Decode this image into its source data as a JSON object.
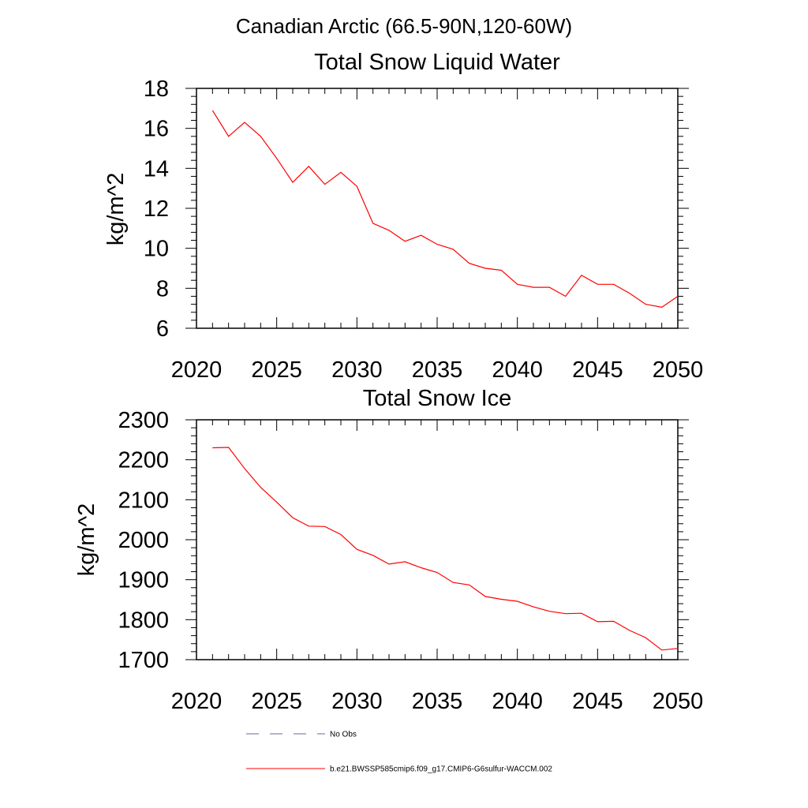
{
  "figure": {
    "title": "Canadian Arctic (66.5-90N,120-60W)"
  },
  "chart_data": [
    {
      "type": "line",
      "title": "Total Snow Liquid Water",
      "xlabel": "",
      "ylabel": "kg/m^2",
      "xlim": [
        2020,
        2050
      ],
      "ylim": [
        6,
        18
      ],
      "x_ticks": [
        "2020",
        "2025",
        "2030",
        "2035",
        "2040",
        "2045",
        "2050"
      ],
      "y_ticks": [
        "6",
        "8",
        "10",
        "12",
        "14",
        "16",
        "18"
      ],
      "grid": false,
      "series": [
        {
          "name": "b.e21.BWSSP585cmip6.f09_g17.CMIP6-G6sulfur-WACCM.002",
          "color": "#ff0000",
          "x": [
            2021,
            2022,
            2023,
            2024,
            2025,
            2026,
            2027,
            2028,
            2029,
            2030,
            2031,
            2032,
            2033,
            2034,
            2035,
            2036,
            2037,
            2038,
            2039,
            2040,
            2041,
            2042,
            2043,
            2044,
            2045,
            2046,
            2047,
            2048,
            2049,
            2050
          ],
          "values": [
            16.9,
            15.6,
            16.3,
            15.6,
            14.5,
            13.3,
            14.1,
            13.2,
            13.8,
            13.1,
            11.25,
            10.9,
            10.35,
            10.65,
            10.2,
            9.95,
            9.25,
            9.0,
            8.9,
            8.2,
            8.05,
            8.05,
            7.6,
            8.65,
            8.2,
            8.2,
            7.75,
            7.2,
            7.05,
            7.6
          ]
        }
      ]
    },
    {
      "type": "line",
      "title": "Total Snow Ice",
      "xlabel": "",
      "ylabel": "kg/m^2",
      "xlim": [
        2020,
        2050
      ],
      "ylim": [
        1700,
        2300
      ],
      "x_ticks": [
        "2020",
        "2025",
        "2030",
        "2035",
        "2040",
        "2045",
        "2050"
      ],
      "y_ticks": [
        "1700",
        "1800",
        "1900",
        "2000",
        "2100",
        "2200",
        "2300"
      ],
      "grid": false,
      "series": [
        {
          "name": "b.e21.BWSSP585cmip6.f09_g17.CMIP6-G6sulfur-WACCM.002",
          "color": "#ff0000",
          "x": [
            2021,
            2022,
            2023,
            2024,
            2025,
            2026,
            2027,
            2028,
            2029,
            2030,
            2031,
            2032,
            2033,
            2034,
            2035,
            2036,
            2037,
            2038,
            2039,
            2040,
            2041,
            2042,
            2043,
            2044,
            2045,
            2046,
            2047,
            2048,
            2049,
            2050
          ],
          "values": [
            2230,
            2231,
            2178,
            2131,
            2094,
            2055,
            2034,
            2033,
            2013,
            1976,
            1961,
            1939,
            1945,
            1930,
            1918,
            1893,
            1887,
            1858,
            1851,
            1846,
            1832,
            1821,
            1815,
            1816,
            1795,
            1796,
            1773,
            1755,
            1724,
            1728
          ]
        }
      ]
    }
  ],
  "legend": {
    "placement": "bottom",
    "entries": [
      {
        "label": "No Obs",
        "color": "#6a6a9a",
        "style": "dashed"
      },
      {
        "label": "b.e21.BWSSP585cmip6.f09_g17.CMIP6-G6sulfur-WACCM.002",
        "color": "#ff0000",
        "style": "solid"
      }
    ]
  }
}
